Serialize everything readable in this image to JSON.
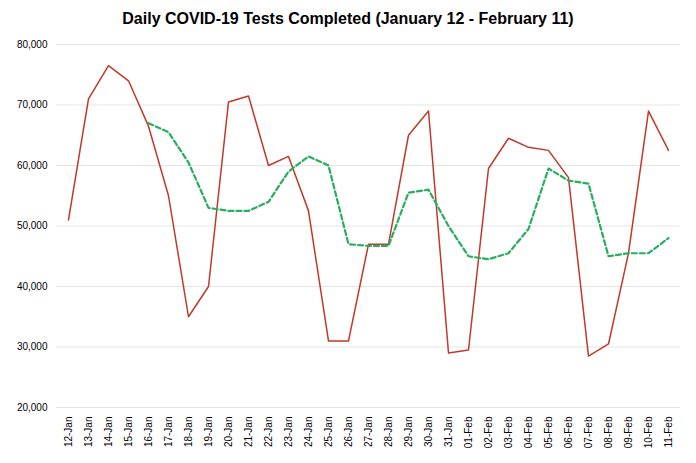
{
  "chart_data": {
    "type": "line",
    "title": "Daily COVID-19 Tests Completed (January 12 - February 11)",
    "categories": [
      "12-Jan",
      "13-Jan",
      "14-Jan",
      "15-Jan",
      "16-Jan",
      "17-Jan",
      "18-Jan",
      "19-Jan",
      "20-Jan",
      "21-Jan",
      "22-Jan",
      "23-Jan",
      "24-Jan",
      "25-Jan",
      "26-Jan",
      "27-Jan",
      "28-Jan",
      "29-Jan",
      "30-Jan",
      "31-Jan",
      "01-Feb",
      "02-Feb",
      "03-Feb",
      "04-Feb",
      "05-Feb",
      "06-Feb",
      "07-Feb",
      "08-Feb",
      "09-Feb",
      "10-Feb",
      "11-Feb"
    ],
    "series": [
      {
        "color": "#C0392B",
        "line_style": "solid",
        "values": [
          51000,
          71000,
          76500,
          74000,
          66500,
          55000,
          35000,
          40000,
          70500,
          71500,
          60000,
          61500,
          52500,
          31000,
          31000,
          47000,
          47000,
          65000,
          69000,
          29000,
          29500,
          59500,
          64500,
          63000,
          62500,
          58000,
          28500,
          30500,
          45500,
          69000,
          62500
        ]
      },
      {
        "color": "#27AE60",
        "line_style": "dashed",
        "values": [
          null,
          null,
          null,
          null,
          67000,
          65500,
          60500,
          53000,
          52500,
          52500,
          54000,
          59000,
          61500,
          60000,
          47000,
          46700,
          46700,
          55500,
          56000,
          50000,
          45000,
          44500,
          45500,
          49500,
          59500,
          57500,
          57000,
          45000,
          45500,
          45500,
          48000
        ]
      }
    ],
    "ylim": [
      20000,
      80000
    ],
    "yticks": [
      {
        "value": 20000,
        "label": "20,000"
      },
      {
        "value": 30000,
        "label": "30,000"
      },
      {
        "value": 40000,
        "label": "40,000"
      },
      {
        "value": 50000,
        "label": "50,000"
      },
      {
        "value": 60000,
        "label": "60,000"
      },
      {
        "value": 70000,
        "label": "70,000"
      },
      {
        "value": 80000,
        "label": "80,000"
      }
    ],
    "grid": true
  }
}
